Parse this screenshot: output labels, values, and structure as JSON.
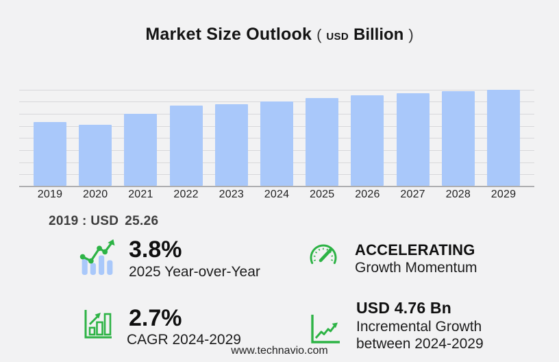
{
  "title": {
    "main": "Market Size Outlook",
    "open_paren": "(",
    "currency": "USD",
    "unit": "Billion",
    "close_paren": ")"
  },
  "chart_data": {
    "type": "bar",
    "title": "Market Size Outlook (USD Billion)",
    "unit": "USD Billion",
    "categories": [
      "2019",
      "2020",
      "2021",
      "2022",
      "2023",
      "2024",
      "2025",
      "2026",
      "2027",
      "2028",
      "2029"
    ],
    "values": [
      25.26,
      24.2,
      28.5,
      31.8,
      32.3,
      33.4,
      34.67,
      35.8,
      36.7,
      37.5,
      38.16
    ],
    "xlabel": "",
    "ylabel": "",
    "ylim": [
      0,
      40.7
    ],
    "grid": true,
    "y_axis_labels_visible": false,
    "bar_color": "#a9c8fa",
    "legend": "none"
  },
  "annotation": {
    "label": "2019 : USD",
    "value": "25.26"
  },
  "stats": [
    {
      "icon": "trend-bars-icon",
      "value": "3.8%",
      "label": "2025 Year-over-Year"
    },
    {
      "icon": "gauge-icon",
      "value": "ACCELERATING",
      "label": "Growth Momentum"
    },
    {
      "icon": "growth-bars-icon",
      "value": "2.7%",
      "label": "CAGR 2024-2029"
    },
    {
      "icon": "growth-line-icon",
      "value": "USD 4.76 Bn",
      "label": "Incremental Growth",
      "label2": "between 2024-2029"
    }
  ],
  "footer": {
    "website": "www.technavio.com"
  },
  "colors": {
    "background": "#f2f2f3",
    "bar_blue": "#a9c8fa",
    "accent_green": "#2db345",
    "gridline": "#d8d8da",
    "axis": "#aeaeb0",
    "text": "#141414",
    "annotation_text": "#3d3d3d"
  }
}
